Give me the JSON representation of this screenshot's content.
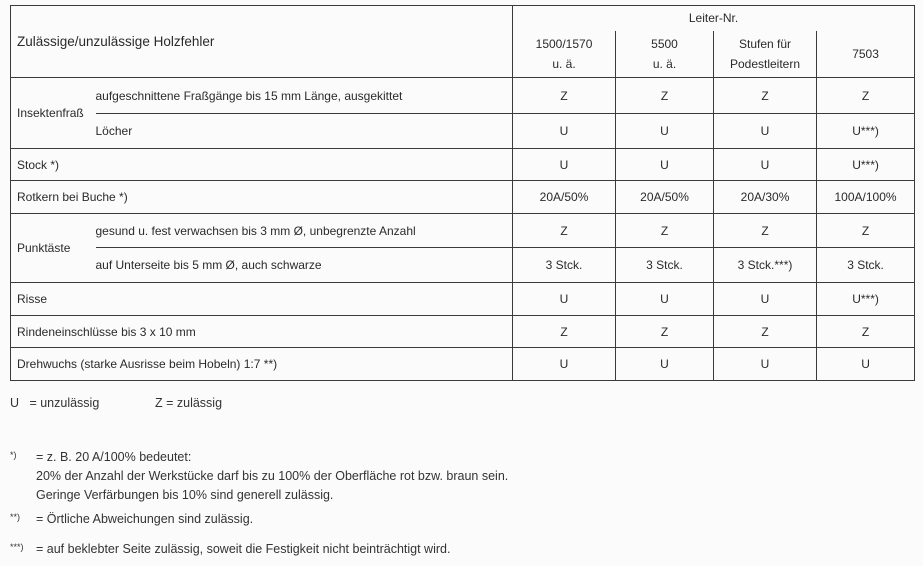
{
  "table": {
    "title": "Zulässige/unzulässige Holzfehler",
    "group_header": "Leiter-Nr.",
    "columns": [
      {
        "line1": "1500/1570",
        "line2": "u. ä."
      },
      {
        "line1": "5500",
        "line2": "u. ä."
      },
      {
        "line1": "Stufen für",
        "line2": "Podestleitern"
      },
      {
        "line1": "7503",
        "line2": ""
      }
    ],
    "rows": [
      {
        "group": "Insektenfraß",
        "label": "aufgeschnittene Fraßgänge bis 15 mm Länge, ausgekittet",
        "values": [
          "Z",
          "Z",
          "Z",
          "Z"
        ]
      },
      {
        "group": "Insektenfraß",
        "label": "Löcher",
        "values": [
          "U",
          "U",
          "U",
          "U***)"
        ]
      },
      {
        "label": "Stock *)",
        "values": [
          "U",
          "U",
          "U",
          "U***)"
        ]
      },
      {
        "label": "Rotkern bei Buche *)",
        "values": [
          "20A/50%",
          "20A/50%",
          "20A/30%",
          "100A/100%"
        ]
      },
      {
        "group": "Punktäste",
        "label": "gesund u. fest verwachsen bis 3 mm Ø, unbegrenzte Anzahl",
        "values": [
          "Z",
          "Z",
          "Z",
          "Z"
        ]
      },
      {
        "group": "Punktäste",
        "label": "auf Unterseite bis 5 mm Ø, auch schwarze",
        "values": [
          "3 Stck.",
          "3 Stck.",
          "3 Stck.***)",
          "3 Stck."
        ]
      },
      {
        "label": "Risse",
        "values": [
          "U",
          "U",
          "U",
          "U***)"
        ]
      },
      {
        "label": "Rindeneinschlüsse bis 3 x 10 mm",
        "values": [
          "Z",
          "Z",
          "Z",
          "Z"
        ]
      },
      {
        "label": "Drehwuchs (starke Ausrisse beim Hobeln) 1:7 **)",
        "values": [
          "U",
          "U",
          "U",
          "U"
        ]
      }
    ]
  },
  "legend": {
    "u": "U   = unzulässig",
    "z": "Z = zulässig"
  },
  "footnotes": [
    {
      "mark": "*)",
      "lines": [
        "= z. B. 20 A/100% bedeutet:",
        "20% der Anzahl der Werkstücke darf bis zu 100% der Oberfläche rot bzw. braun sein.",
        "Geringe Verfärbungen bis 10% sind generell zulässig."
      ]
    },
    {
      "mark": "**)",
      "lines": [
        "= Örtliche Abweichungen sind zulässig."
      ]
    },
    {
      "mark": "***)",
      "lines": [
        "= auf beklebter Seite zulässig, soweit die Festigkeit nicht beinträchtigt wird."
      ]
    }
  ]
}
